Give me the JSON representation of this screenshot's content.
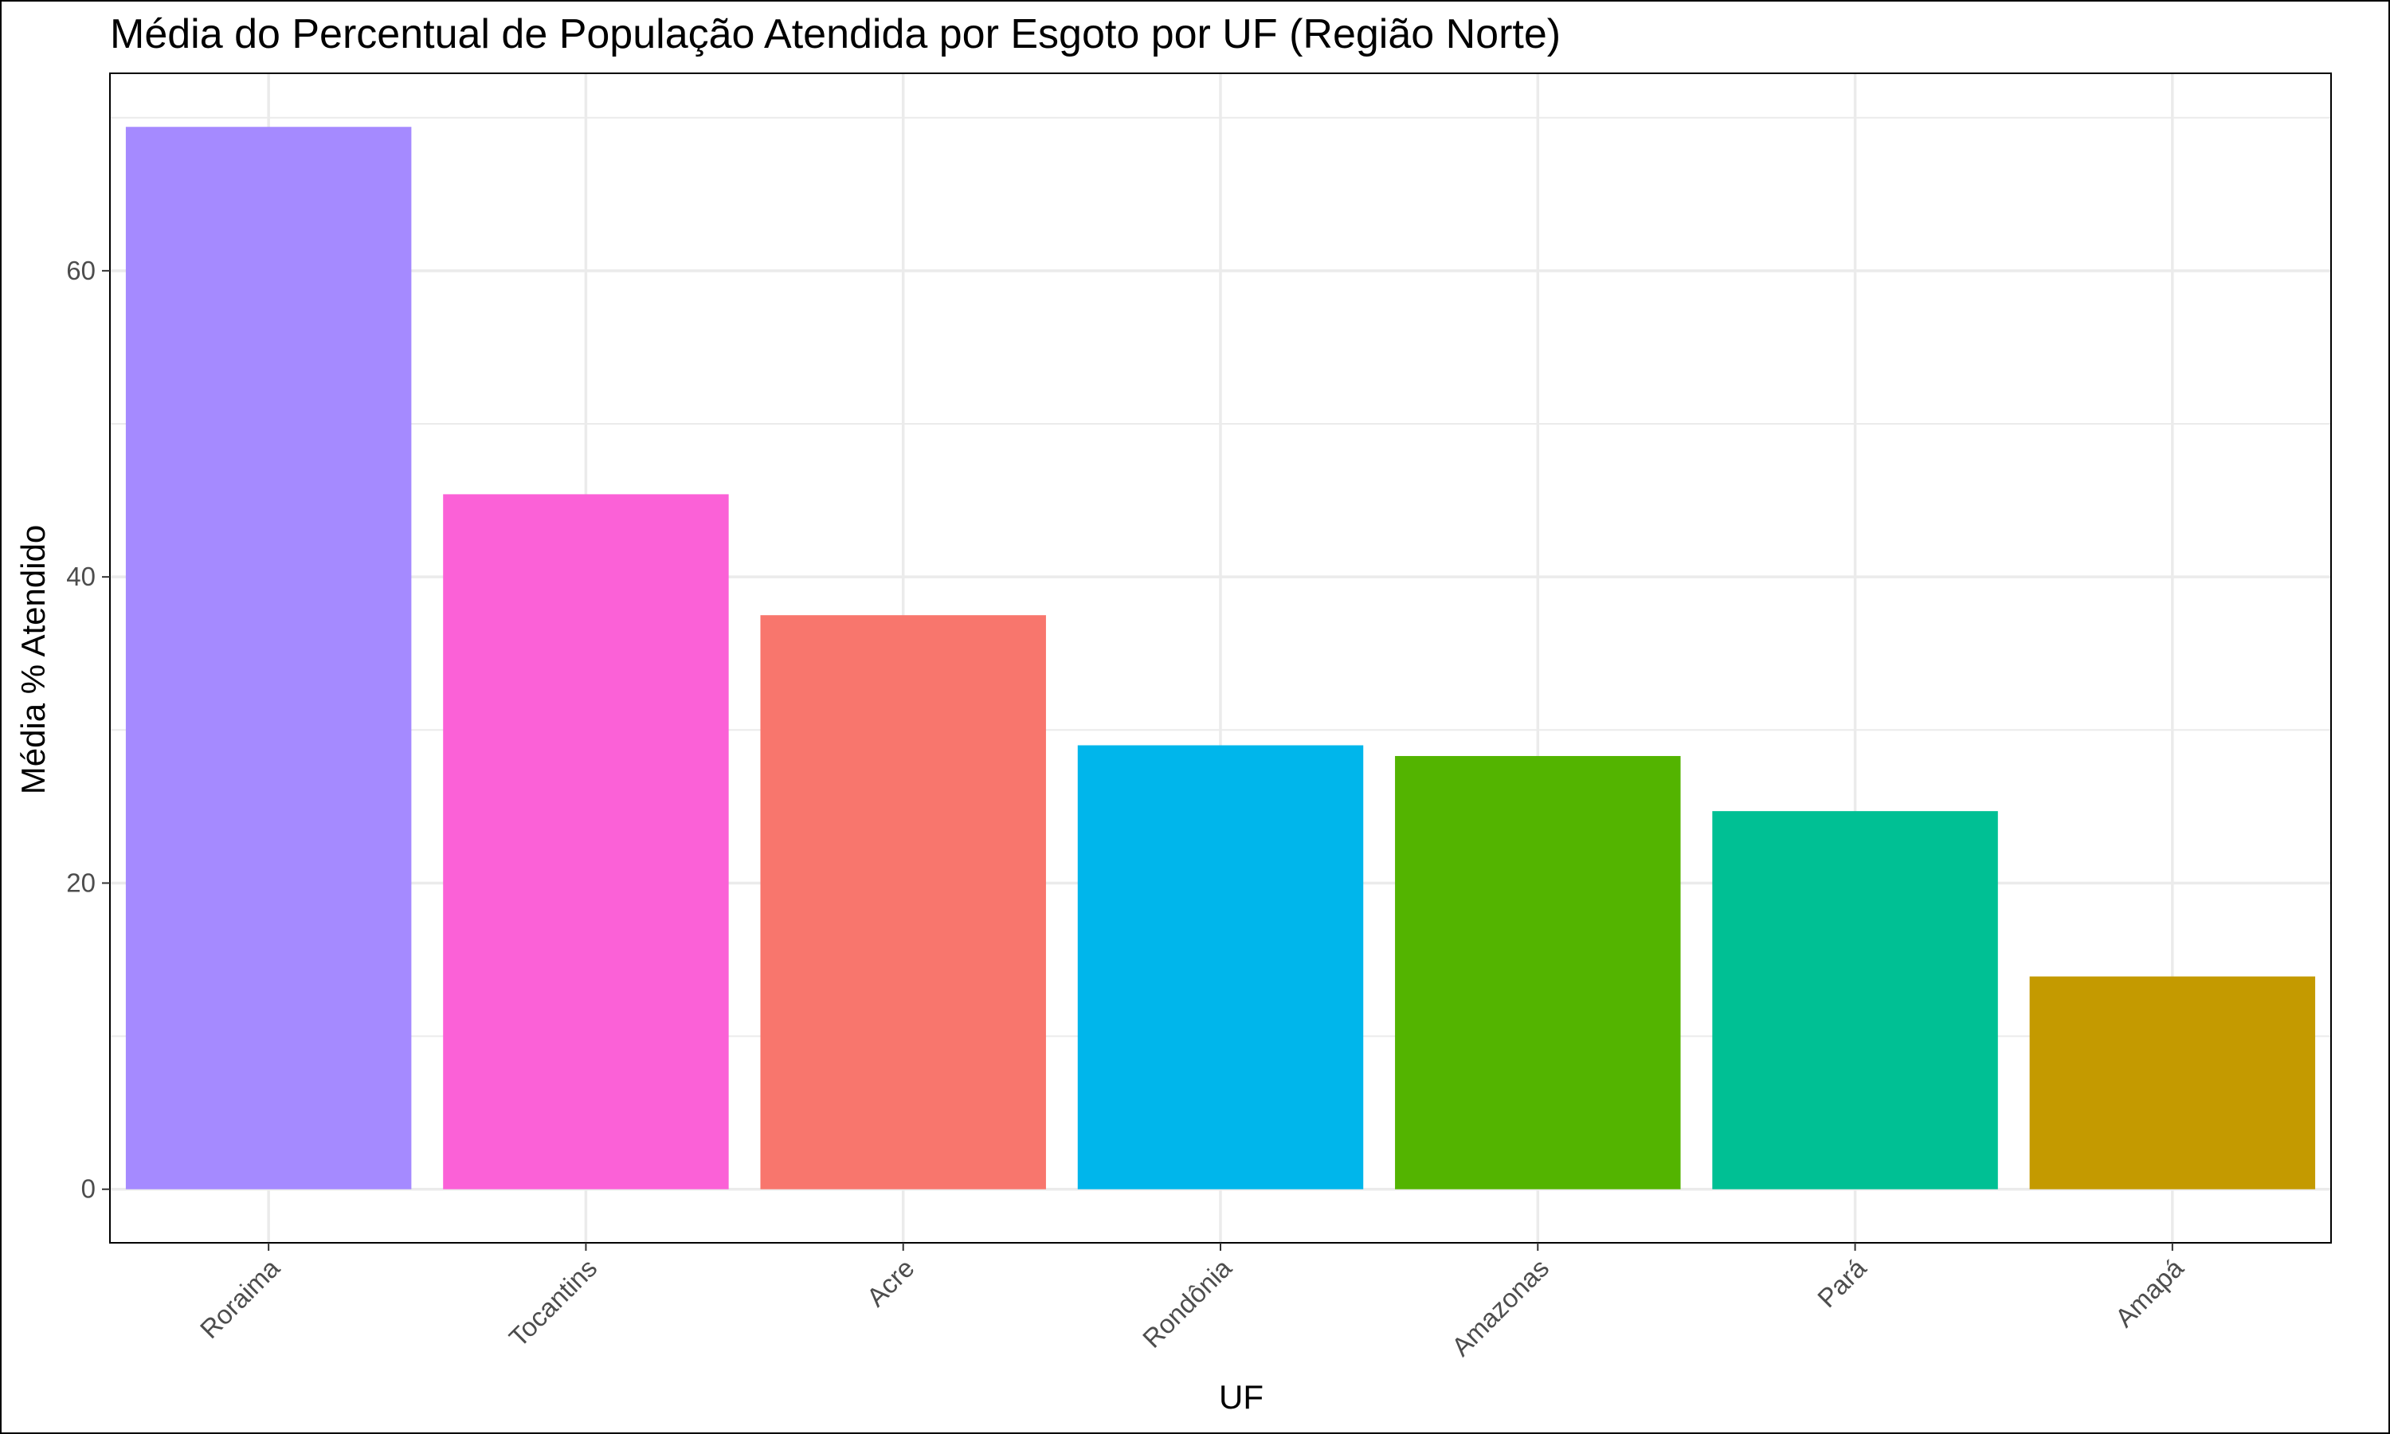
{
  "chart_data": {
    "type": "bar",
    "title": "Média do Percentual de População Atendida por Esgoto por UF (Região Norte)",
    "xlabel": "UF",
    "ylabel": "Média % Atendido",
    "categories": [
      "Roraima",
      "Tocantins",
      "Acre",
      "Rondônia",
      "Amazonas",
      "Pará",
      "Amapá"
    ],
    "values": [
      69.4,
      45.4,
      37.5,
      29.0,
      28.3,
      24.7,
      13.9
    ],
    "colors": [
      "#A58AFF",
      "#FB61D7",
      "#F8766D",
      "#00B6EB",
      "#53B400",
      "#00C094",
      "#C49A00"
    ],
    "ylim": [
      -3.5,
      72.9
    ],
    "yticks": [
      0,
      20,
      40,
      60
    ],
    "ytick_labels": [
      "0",
      "20",
      "40",
      "60"
    ],
    "grid": true,
    "legend": "none"
  }
}
